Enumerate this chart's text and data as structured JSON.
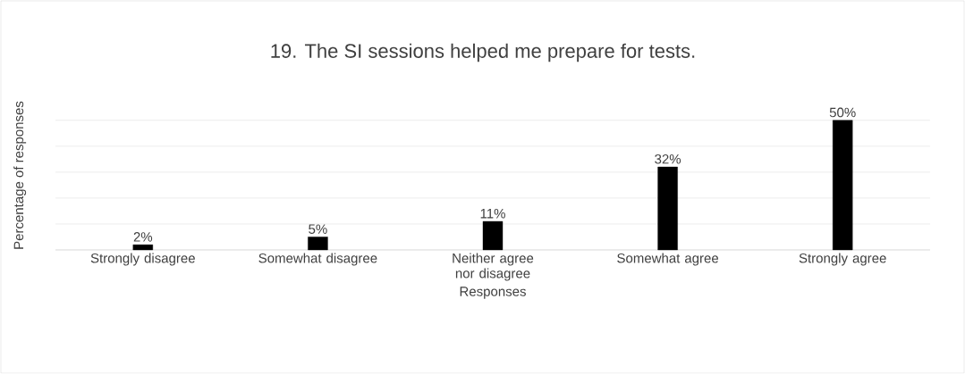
{
  "chart_data": {
    "type": "bar",
    "title": "19. The SI sessions helped me prepare for tests.",
    "xlabel": "Responses",
    "ylabel": "Percentage of responses",
    "categories": [
      "Strongly disagree",
      "Somewhat disagree",
      "Neither agree nor disagree",
      "Somewhat agree",
      "Strongly agree"
    ],
    "values": [
      2,
      5,
      11,
      32,
      50
    ],
    "value_labels": [
      "2%",
      "5%",
      "11%",
      "32%",
      "50%"
    ],
    "color": "#000000",
    "grid": "y",
    "tick_labels": "x"
  }
}
